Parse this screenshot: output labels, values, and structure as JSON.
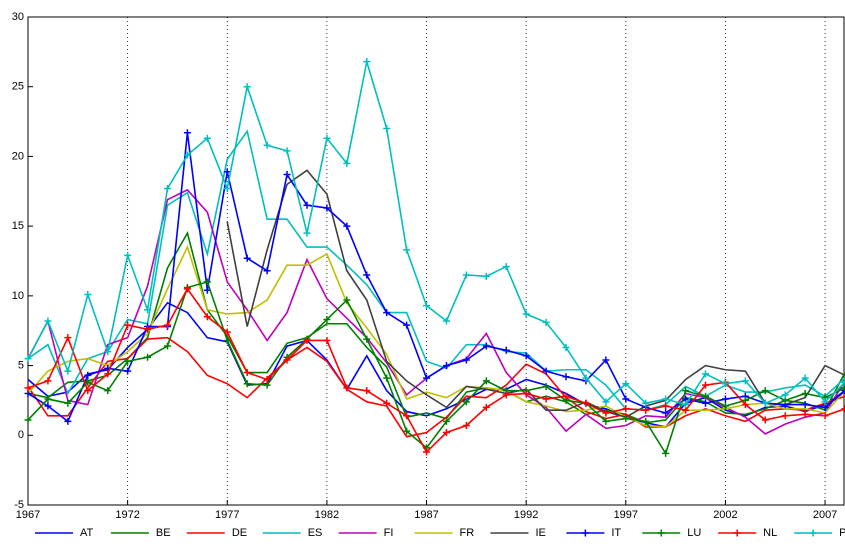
{
  "chart_data": {
    "type": "line",
    "x": [
      1967,
      1968,
      1969,
      1970,
      1971,
      1972,
      1973,
      1974,
      1975,
      1976,
      1977,
      1978,
      1979,
      1980,
      1981,
      1982,
      1983,
      1984,
      1985,
      1986,
      1987,
      1988,
      1989,
      1990,
      1991,
      1992,
      1993,
      1994,
      1995,
      1996,
      1997,
      1998,
      1999,
      2000,
      2001,
      2002,
      2003,
      2004,
      2005,
      2006,
      2007,
      2008
    ],
    "xlim": [
      1967,
      2008
    ],
    "xticks": [
      1967,
      1972,
      1977,
      1982,
      1987,
      1992,
      1997,
      2002,
      2007
    ],
    "ylim": [
      -5,
      30
    ],
    "yticks": [
      -5,
      0,
      5,
      10,
      15,
      20,
      25,
      30
    ],
    "grid": "x",
    "legend": "bottom",
    "series": [
      {
        "name": "AT",
        "color": "#0000ff",
        "marker": "none",
        "values": [
          4.0,
          2.8,
          3.1,
          4.4,
          4.7,
          6.3,
          7.6,
          9.5,
          8.8,
          7.0,
          6.7,
          3.6,
          3.7,
          6.4,
          6.8,
          5.4,
          3.3,
          5.7,
          3.2,
          1.7,
          1.4,
          1.9,
          2.6,
          3.3,
          3.3,
          4.0,
          3.6,
          3.0,
          2.2,
          1.9,
          1.3,
          0.9,
          0.6,
          2.3,
          2.7,
          1.8,
          1.4,
          2.0,
          2.1,
          1.7,
          2.2,
          3.2
        ]
      },
      {
        "name": "BE",
        "color": "#008000",
        "marker": "none",
        "values": [
          3.0,
          2.7,
          3.8,
          3.9,
          4.3,
          5.5,
          7.0,
          12.0,
          14.5,
          9.0,
          7.1,
          4.5,
          4.5,
          6.6,
          7.0,
          8.0,
          8.0,
          6.3,
          4.9,
          1.3,
          1.6,
          1.2,
          3.1,
          3.4,
          3.2,
          2.4,
          2.8,
          2.4,
          1.5,
          1.8,
          1.5,
          0.9,
          1.1,
          2.7,
          2.4,
          1.6,
          1.5,
          1.9,
          2.5,
          2.3,
          1.8,
          4.5
        ]
      },
      {
        "name": "DE",
        "color": "#ff0000",
        "marker": "none",
        "values": [
          3.5,
          1.4,
          1.4,
          3.4,
          5.3,
          5.5,
          6.9,
          7.0,
          6.0,
          4.3,
          3.7,
          2.7,
          4.1,
          5.4,
          6.3,
          5.3,
          3.3,
          2.4,
          2.1,
          -0.1,
          0.2,
          1.3,
          2.8,
          2.7,
          3.6,
          5.1,
          4.4,
          2.7,
          1.7,
          1.2,
          1.5,
          0.6,
          0.6,
          1.4,
          1.9,
          1.4,
          1.0,
          1.8,
          1.9,
          1.8,
          2.3,
          2.8
        ]
      },
      {
        "name": "ES",
        "color": "#00bfbf",
        "marker": "none",
        "values": [
          5.5,
          6.5,
          3.0,
          5.5,
          6.0,
          8.3,
          8.0,
          16.5,
          17.4,
          13.0,
          19.8,
          21.8,
          15.5,
          15.5,
          13.5,
          13.5,
          12.2,
          10.8,
          8.8,
          8.8,
          5.3,
          4.8,
          6.5,
          6.5,
          6.0,
          5.9,
          4.6,
          4.7,
          4.7,
          3.6,
          1.9,
          1.8,
          2.2,
          3.5,
          2.8,
          3.6,
          3.1,
          3.1,
          3.4,
          3.6,
          2.8,
          4.1
        ]
      },
      {
        "name": "FI",
        "color": "#bf00bf",
        "marker": "none",
        "values": [
          5.5,
          8.2,
          2.5,
          2.2,
          6.5,
          7.0,
          10.7,
          16.9,
          17.6,
          16.0,
          11.0,
          9.0,
          6.8,
          8.8,
          12.6,
          9.8,
          8.4,
          7.0,
          5.2,
          2.9,
          4.1,
          5.0,
          5.5,
          7.3,
          4.5,
          2.9,
          2.0,
          0.3,
          1.5,
          0.5,
          0.7,
          1.4,
          1.3,
          3.0,
          2.7,
          2.0,
          1.3,
          0.1,
          0.8,
          1.3,
          1.6,
          3.9
        ]
      },
      {
        "name": "FR",
        "color": "#bfbf00",
        "marker": "none",
        "values": [
          3.0,
          4.6,
          5.3,
          5.5,
          5.0,
          6.0,
          7.3,
          10.5,
          13.5,
          9.0,
          8.7,
          8.8,
          9.7,
          12.2,
          12.2,
          13.0,
          9.5,
          7.7,
          5.8,
          2.6,
          3.1,
          2.7,
          3.5,
          3.4,
          3.2,
          2.4,
          2.1,
          1.7,
          1.8,
          2.1,
          1.3,
          0.7,
          0.6,
          1.8,
          1.8,
          1.9,
          2.2,
          2.3,
          1.9,
          1.9,
          1.6,
          3.2
        ]
      },
      {
        "name": "IE",
        "color": "#404040",
        "marker": "none",
        "values": [
          null,
          null,
          null,
          null,
          null,
          null,
          null,
          null,
          null,
          null,
          15.3,
          7.8,
          13.3,
          18.0,
          19.0,
          17.3,
          11.8,
          9.7,
          5.3,
          3.9,
          2.9,
          2.0,
          3.5,
          3.3,
          3.0,
          3.3,
          1.8,
          1.8,
          2.4,
          1.7,
          1.3,
          2.1,
          2.5,
          4.0,
          5.0,
          4.7,
          4.6,
          2.3,
          2.2,
          2.7,
          5.0,
          4.3
        ]
      },
      {
        "name": "IT",
        "color": "#0000ff",
        "marker": "+",
        "values": [
          3.0,
          2.1,
          1.0,
          4.3,
          4.8,
          4.6,
          7.8,
          7.8,
          21.7,
          10.4,
          18.9,
          12.7,
          11.8,
          18.7,
          16.5,
          16.3,
          15.0,
          11.5,
          8.8,
          7.9,
          4.1,
          5.0,
          5.4,
          6.4,
          6.1,
          5.7,
          4.6,
          4.2,
          3.9,
          5.4,
          2.6,
          2.0,
          1.6,
          2.6,
          2.3,
          2.6,
          2.8,
          2.3,
          2.2,
          2.2,
          2.0,
          3.2
        ]
      },
      {
        "name": "LU",
        "color": "#008000",
        "marker": "+",
        "values": [
          1.1,
          2.6,
          2.3,
          3.8,
          3.2,
          5.3,
          5.6,
          6.4,
          10.6,
          11.0,
          6.8,
          3.7,
          3.6,
          5.6,
          6.9,
          8.3,
          9.7,
          6.9,
          4.1,
          0.3,
          -0.9,
          1.0,
          2.4,
          3.9,
          3.2,
          3.2,
          3.5,
          2.5,
          2.3,
          1.0,
          1.2,
          1.0,
          -1.3,
          3.2,
          2.8,
          2.1,
          2.5,
          3.2,
          2.5,
          3.0,
          2.7,
          3.4
        ]
      },
      {
        "name": "NL",
        "color": "#ff0000",
        "marker": "+",
        "values": [
          3.4,
          3.9,
          7.0,
          3.2,
          4.4,
          7.9,
          7.6,
          7.9,
          10.5,
          8.5,
          7.4,
          4.5,
          4.0,
          5.4,
          6.8,
          6.8,
          3.4,
          3.2,
          2.3,
          1.4,
          -1.2,
          0.2,
          0.7,
          2.0,
          2.9,
          3.0,
          2.6,
          2.8,
          2.3,
          1.6,
          1.9,
          1.8,
          2.1,
          1.8,
          3.6,
          3.8,
          2.2,
          1.1,
          1.4,
          1.5,
          1.4,
          1.9
        ]
      },
      {
        "name": "PT",
        "color": "#00bfbf",
        "marker": "+",
        "values": [
          5.5,
          8.2,
          4.6,
          10.1,
          6.0,
          12.9,
          9.0,
          17.7,
          20.1,
          21.3,
          17.7,
          25.0,
          20.8,
          20.4,
          14.5,
          21.3,
          19.5,
          26.8,
          22.0,
          13.3,
          9.3,
          8.2,
          11.5,
          11.4,
          12.1,
          8.7,
          8.1,
          6.3,
          4.1,
          2.4,
          3.7,
          2.3,
          2.6,
          2.2,
          4.4,
          3.7,
          3.9,
          2.3,
          2.9,
          4.1,
          2.4,
          3.8
        ]
      }
    ]
  }
}
